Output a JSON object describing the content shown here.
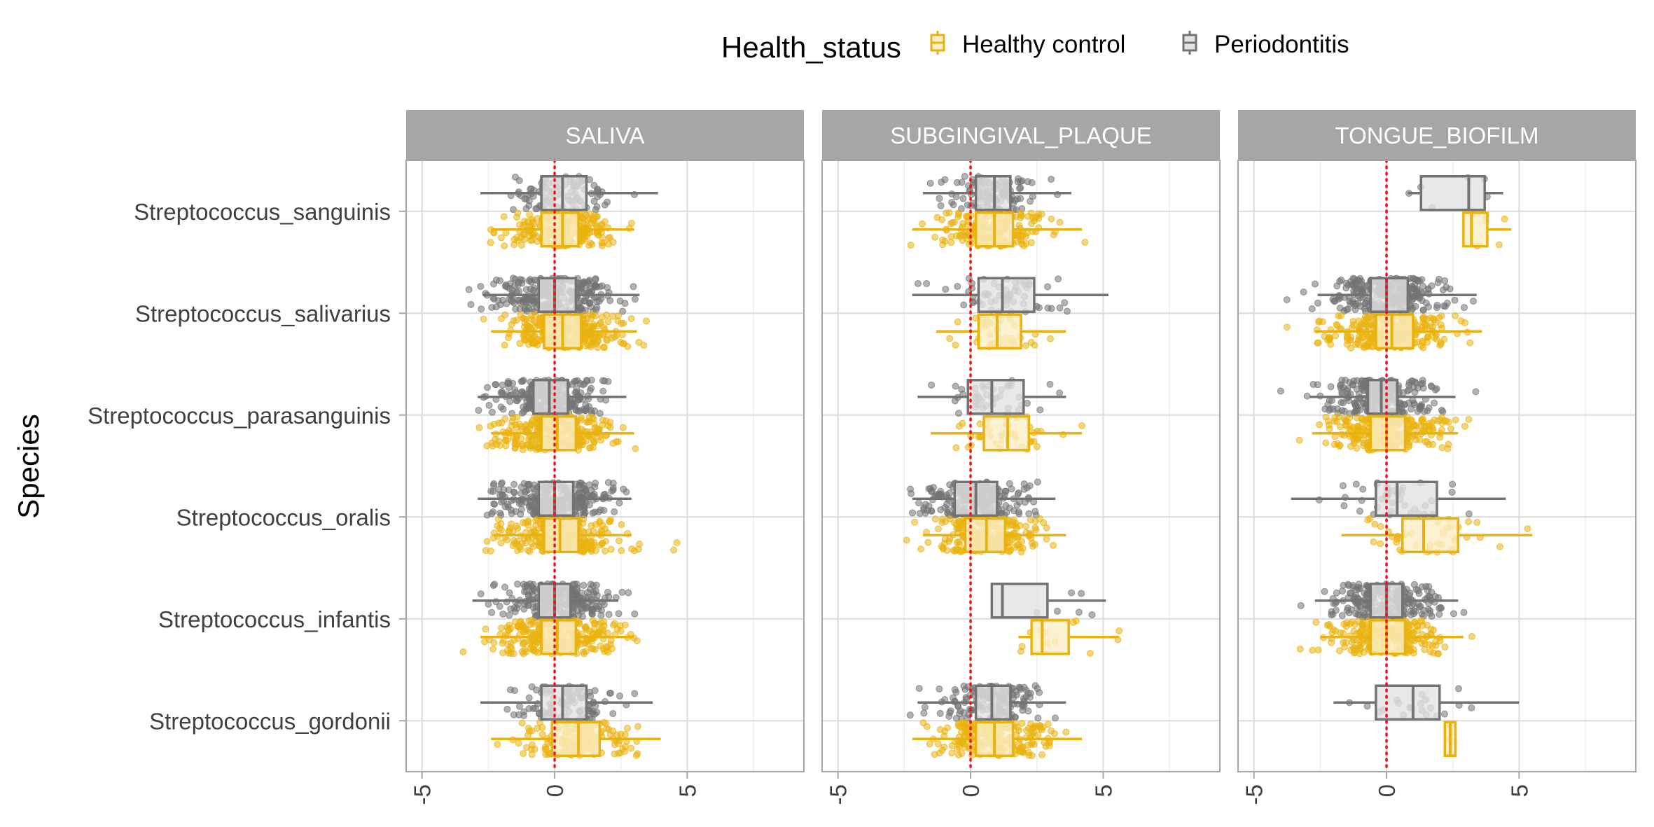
{
  "chart_data": {
    "type": "boxplot-jitter",
    "orientation": "horizontal",
    "title": "",
    "xlabel": "",
    "ylabel": "Species",
    "xlim": [
      -5.6,
      9.4
    ],
    "x_ticks": [
      -5,
      0,
      5
    ],
    "x_tick_labels": [
      "-5",
      "0",
      "5"
    ],
    "reference_line": {
      "x": 0,
      "color": "#E8141B",
      "style": "dotted"
    },
    "grid": true,
    "legend": {
      "title": "Health_status",
      "position": "top",
      "entries": [
        {
          "name": "Healthy control",
          "color": "#E9B20F"
        },
        {
          "name": "Periodontitis",
          "color": "#737373"
        }
      ]
    },
    "categories": [
      "Streptococcus_sanguinis",
      "Streptococcus_salivarius",
      "Streptococcus_parasanguinis",
      "Streptococcus_oralis",
      "Streptococcus_infantis",
      "Streptococcus_gordonii"
    ],
    "facets": [
      {
        "name": "SALIVA",
        "groups": [
          {
            "species": 0,
            "status": "Periodontitis",
            "q1": -0.5,
            "median": 0.3,
            "q3": 1.2,
            "lo": -2.8,
            "hi": 3.9,
            "n": 100,
            "spread": 1.3
          },
          {
            "species": 0,
            "status": "Healthy control",
            "q1": -0.5,
            "median": 0.3,
            "q3": 0.9,
            "lo": -2.4,
            "hi": 3.0,
            "n": 220,
            "spread": 1.4
          },
          {
            "species": 1,
            "status": "Periodontitis",
            "q1": -0.6,
            "median": 0.0,
            "q3": 0.8,
            "lo": -2.7,
            "hi": 3.2,
            "n": 260,
            "spread": 1.5
          },
          {
            "species": 1,
            "status": "Healthy control",
            "q1": -0.4,
            "median": 0.3,
            "q3": 1.0,
            "lo": -2.4,
            "hi": 3.1,
            "n": 320,
            "spread": 1.4
          },
          {
            "species": 2,
            "status": "Periodontitis",
            "q1": -0.8,
            "median": -0.2,
            "q3": 0.5,
            "lo": -2.9,
            "hi": 2.7,
            "n": 260,
            "spread": 1.3
          },
          {
            "species": 2,
            "status": "Healthy control",
            "q1": -0.5,
            "median": 0.1,
            "q3": 0.8,
            "lo": -2.4,
            "hi": 3.0,
            "n": 280,
            "spread": 1.6
          },
          {
            "species": 3,
            "status": "Periodontitis",
            "q1": -0.6,
            "median": 0.0,
            "q3": 0.7,
            "lo": -2.9,
            "hi": 2.9,
            "n": 260,
            "spread": 1.5
          },
          {
            "species": 3,
            "status": "Healthy control",
            "q1": -0.4,
            "median": 0.2,
            "q3": 0.9,
            "lo": -2.3,
            "hi": 2.9,
            "n": 280,
            "spread": 1.5
          },
          {
            "species": 4,
            "status": "Periodontitis",
            "q1": -0.6,
            "median": 0.0,
            "q3": 0.6,
            "lo": -3.1,
            "hi": 2.4,
            "n": 260,
            "spread": 1.4
          },
          {
            "species": 4,
            "status": "Healthy control",
            "q1": -0.5,
            "median": 0.1,
            "q3": 0.8,
            "lo": -2.8,
            "hi": 3.0,
            "n": 280,
            "spread": 1.6
          },
          {
            "species": 5,
            "status": "Periodontitis",
            "q1": -0.5,
            "median": 0.3,
            "q3": 1.2,
            "lo": -2.8,
            "hi": 3.7,
            "n": 100,
            "spread": 1.3
          },
          {
            "species": 5,
            "status": "Healthy control",
            "q1": -0.1,
            "median": 0.9,
            "q3": 1.7,
            "lo": -2.4,
            "hi": 4.0,
            "n": 150,
            "spread": 1.5
          }
        ]
      },
      {
        "name": "SUBGINGIVAL_PLAQUE",
        "groups": [
          {
            "species": 0,
            "status": "Periodontitis",
            "q1": 0.2,
            "median": 0.9,
            "q3": 1.5,
            "lo": -1.8,
            "hi": 3.8,
            "n": 120,
            "spread": 1.2
          },
          {
            "species": 0,
            "status": "Healthy control",
            "q1": 0.2,
            "median": 0.9,
            "q3": 1.6,
            "lo": -2.2,
            "hi": 4.2,
            "n": 200,
            "spread": 1.4
          },
          {
            "species": 1,
            "status": "Periodontitis",
            "q1": 0.3,
            "median": 1.2,
            "q3": 2.4,
            "lo": -2.2,
            "hi": 5.2,
            "n": 60,
            "spread": 1.5
          },
          {
            "species": 1,
            "status": "Healthy control",
            "q1": 0.3,
            "median": 1.0,
            "q3": 1.9,
            "lo": -1.3,
            "hi": 3.6,
            "n": 40,
            "spread": 1.3
          },
          {
            "species": 2,
            "status": "Periodontitis",
            "q1": -0.1,
            "median": 0.8,
            "q3": 2.0,
            "lo": -2.0,
            "hi": 3.6,
            "n": 40,
            "spread": 1.4
          },
          {
            "species": 2,
            "status": "Healthy control",
            "q1": 0.5,
            "median": 1.4,
            "q3": 2.2,
            "lo": -1.5,
            "hi": 4.2,
            "n": 40,
            "spread": 1.3
          },
          {
            "species": 3,
            "status": "Periodontitis",
            "q1": -0.6,
            "median": 0.2,
            "q3": 1.0,
            "lo": -2.2,
            "hi": 3.2,
            "n": 220,
            "spread": 1.3
          },
          {
            "species": 3,
            "status": "Healthy control",
            "q1": -0.2,
            "median": 0.6,
            "q3": 1.3,
            "lo": -1.8,
            "hi": 3.6,
            "n": 240,
            "spread": 1.4
          },
          {
            "species": 4,
            "status": "Periodontitis",
            "q1": 0.8,
            "median": 1.2,
            "q3": 2.9,
            "lo": 0.8,
            "hi": 5.1,
            "n": 6,
            "spread": 1.4
          },
          {
            "species": 4,
            "status": "Healthy control",
            "q1": 2.3,
            "median": 2.7,
            "q3": 3.7,
            "lo": 1.8,
            "hi": 5.6,
            "n": 12,
            "spread": 1.5
          },
          {
            "species": 5,
            "status": "Periodontitis",
            "q1": 0.2,
            "median": 0.8,
            "q3": 1.5,
            "lo": -2.0,
            "hi": 3.6,
            "n": 160,
            "spread": 1.2
          },
          {
            "species": 5,
            "status": "Healthy control",
            "q1": 0.2,
            "median": 0.9,
            "q3": 1.6,
            "lo": -2.2,
            "hi": 4.2,
            "n": 220,
            "spread": 1.5
          }
        ]
      },
      {
        "name": "TONGUE_BIOFILM",
        "groups": [
          {
            "species": 0,
            "status": "Periodontitis",
            "q1": 1.3,
            "median": 3.1,
            "q3": 3.7,
            "lo": 0.8,
            "hi": 4.4,
            "n": 6,
            "spread": 1.0
          },
          {
            "species": 0,
            "status": "Healthy control",
            "q1": 2.9,
            "median": 3.2,
            "q3": 3.8,
            "lo": 2.9,
            "hi": 4.7,
            "n": 6,
            "spread": 0.6
          },
          {
            "species": 1,
            "status": "Periodontitis",
            "q1": -0.6,
            "median": 0.0,
            "q3": 0.8,
            "lo": -2.6,
            "hi": 3.4,
            "n": 260,
            "spread": 1.5
          },
          {
            "species": 1,
            "status": "Healthy control",
            "q1": -0.4,
            "median": 0.2,
            "q3": 1.0,
            "lo": -2.7,
            "hi": 3.6,
            "n": 280,
            "spread": 1.5
          },
          {
            "species": 2,
            "status": "Periodontitis",
            "q1": -0.7,
            "median": -0.2,
            "q3": 0.4,
            "lo": -2.9,
            "hi": 2.6,
            "n": 240,
            "spread": 1.4
          },
          {
            "species": 2,
            "status": "Healthy control",
            "q1": -0.6,
            "median": 0.0,
            "q3": 0.7,
            "lo": -2.8,
            "hi": 2.7,
            "n": 260,
            "spread": 1.5
          },
          {
            "species": 3,
            "status": "Periodontitis",
            "q1": -0.4,
            "median": 0.4,
            "q3": 1.9,
            "lo": -3.6,
            "hi": 4.5,
            "n": 40,
            "spread": 1.6
          },
          {
            "species": 3,
            "status": "Healthy control",
            "q1": 0.6,
            "median": 1.4,
            "q3": 2.7,
            "lo": -1.7,
            "hi": 5.5,
            "n": 40,
            "spread": 1.6
          },
          {
            "species": 4,
            "status": "Periodontitis",
            "q1": -0.6,
            "median": 0.0,
            "q3": 0.6,
            "lo": -2.7,
            "hi": 2.7,
            "n": 220,
            "spread": 1.4
          },
          {
            "species": 4,
            "status": "Healthy control",
            "q1": -0.6,
            "median": 0.0,
            "q3": 0.7,
            "lo": -2.5,
            "hi": 2.9,
            "n": 240,
            "spread": 1.4
          },
          {
            "species": 5,
            "status": "Periodontitis",
            "q1": -0.4,
            "median": 1.0,
            "q3": 2.0,
            "lo": -2.0,
            "hi": 5.0,
            "n": 20,
            "spread": 1.6
          },
          {
            "species": 5,
            "status": "Healthy control",
            "q1": 2.2,
            "median": 2.4,
            "q3": 2.6,
            "lo": 2.2,
            "hi": 2.6,
            "n": 4,
            "spread": 0.2
          }
        ]
      }
    ]
  }
}
